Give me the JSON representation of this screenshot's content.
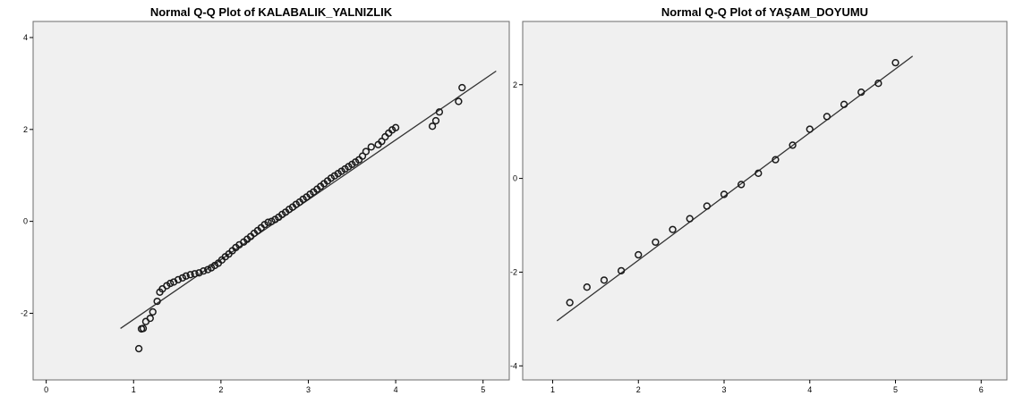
{
  "chart_data": [
    {
      "type": "scatter",
      "title": "Normal Q-Q Plot of KALABALIK_YALNIZLIK",
      "xlabel": "",
      "ylabel": "",
      "xlim": [
        -0.15,
        5.3
      ],
      "ylim": [
        -3.45,
        4.35
      ],
      "xticks": [
        0,
        1,
        2,
        3,
        4,
        5
      ],
      "yticks": [
        -2,
        0,
        2,
        4
      ],
      "grid": false,
      "reference_line": [
        [
          0.85,
          -2.33
        ],
        [
          5.15,
          3.27
        ]
      ],
      "points": [
        [
          1.06,
          -2.77
        ],
        [
          1.09,
          -2.34
        ],
        [
          1.11,
          -2.33
        ],
        [
          1.14,
          -2.18
        ],
        [
          1.19,
          -2.11
        ],
        [
          1.22,
          -1.97
        ],
        [
          1.27,
          -1.74
        ],
        [
          1.3,
          -1.54
        ],
        [
          1.33,
          -1.47
        ],
        [
          1.38,
          -1.4
        ],
        [
          1.42,
          -1.35
        ],
        [
          1.46,
          -1.32
        ],
        [
          1.51,
          -1.27
        ],
        [
          1.56,
          -1.23
        ],
        [
          1.6,
          -1.19
        ],
        [
          1.65,
          -1.16
        ],
        [
          1.7,
          -1.14
        ],
        [
          1.75,
          -1.12
        ],
        [
          1.8,
          -1.08
        ],
        [
          1.85,
          -1.05
        ],
        [
          1.89,
          -1.01
        ],
        [
          1.93,
          -0.96
        ],
        [
          1.97,
          -0.91
        ],
        [
          2.01,
          -0.84
        ],
        [
          2.05,
          -0.77
        ],
        [
          2.09,
          -0.71
        ],
        [
          2.13,
          -0.64
        ],
        [
          2.17,
          -0.57
        ],
        [
          2.21,
          -0.51
        ],
        [
          2.26,
          -0.45
        ],
        [
          2.3,
          -0.39
        ],
        [
          2.34,
          -0.33
        ],
        [
          2.38,
          -0.26
        ],
        [
          2.42,
          -0.2
        ],
        [
          2.46,
          -0.14
        ],
        [
          2.5,
          -0.07
        ],
        [
          2.54,
          -0.02
        ],
        [
          2.58,
          0.0
        ],
        [
          2.62,
          0.04
        ],
        [
          2.66,
          0.09
        ],
        [
          2.7,
          0.15
        ],
        [
          2.74,
          0.2
        ],
        [
          2.78,
          0.26
        ],
        [
          2.82,
          0.31
        ],
        [
          2.86,
          0.37
        ],
        [
          2.9,
          0.42
        ],
        [
          2.94,
          0.48
        ],
        [
          2.98,
          0.53
        ],
        [
          3.02,
          0.59
        ],
        [
          3.06,
          0.64
        ],
        [
          3.1,
          0.7
        ],
        [
          3.14,
          0.76
        ],
        [
          3.18,
          0.82
        ],
        [
          3.22,
          0.88
        ],
        [
          3.26,
          0.94
        ],
        [
          3.3,
          0.99
        ],
        [
          3.34,
          1.04
        ],
        [
          3.38,
          1.09
        ],
        [
          3.42,
          1.14
        ],
        [
          3.46,
          1.19
        ],
        [
          3.5,
          1.24
        ],
        [
          3.54,
          1.29
        ],
        [
          3.58,
          1.34
        ],
        [
          3.62,
          1.42
        ],
        [
          3.66,
          1.52
        ],
        [
          3.72,
          1.62
        ],
        [
          3.8,
          1.67
        ],
        [
          3.84,
          1.74
        ],
        [
          3.88,
          1.84
        ],
        [
          3.92,
          1.92
        ],
        [
          3.96,
          1.99
        ],
        [
          4.0,
          2.04
        ],
        [
          4.42,
          2.07
        ],
        [
          4.46,
          2.19
        ],
        [
          4.5,
          2.38
        ],
        [
          4.72,
          2.61
        ],
        [
          4.76,
          2.91
        ]
      ]
    },
    {
      "type": "scatter",
      "title": "Normal Q-Q Plot of YAŞAM_DOYUMU",
      "xlabel": "",
      "ylabel": "",
      "xlim": [
        0.65,
        6.3
      ],
      "ylim": [
        -4.3,
        3.35
      ],
      "xticks": [
        1,
        2,
        3,
        4,
        5,
        6
      ],
      "yticks": [
        -4,
        -2,
        0,
        2
      ],
      "grid": false,
      "reference_line": [
        [
          1.05,
          -3.04
        ],
        [
          5.2,
          2.61
        ]
      ],
      "points": [
        [
          1.2,
          -2.65
        ],
        [
          1.4,
          -2.32
        ],
        [
          1.6,
          -2.17
        ],
        [
          1.8,
          -1.97
        ],
        [
          2.0,
          -1.63
        ],
        [
          2.2,
          -1.36
        ],
        [
          2.4,
          -1.09
        ],
        [
          2.6,
          -0.86
        ],
        [
          2.8,
          -0.59
        ],
        [
          3.0,
          -0.34
        ],
        [
          3.2,
          -0.13
        ],
        [
          3.4,
          0.11
        ],
        [
          3.6,
          0.4
        ],
        [
          3.8,
          0.71
        ],
        [
          4.0,
          1.05
        ],
        [
          4.2,
          1.32
        ],
        [
          4.4,
          1.58
        ],
        [
          4.6,
          1.84
        ],
        [
          4.8,
          2.03
        ],
        [
          5.0,
          2.47
        ]
      ]
    }
  ]
}
